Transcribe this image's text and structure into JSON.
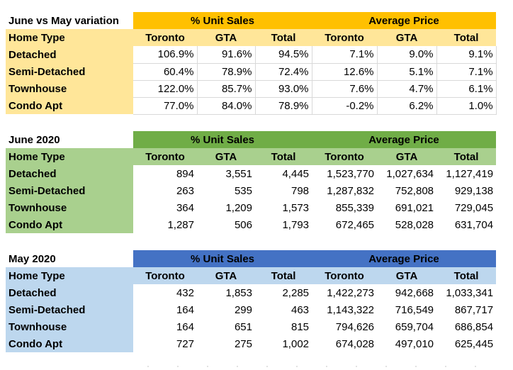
{
  "colors": {
    "variation_header": "#ffc000",
    "variation_label": "#ffe699",
    "june_header": "#70ad47",
    "june_label": "#a9d08e",
    "may_header": "#4472c4",
    "may_label": "#bdd7ee"
  },
  "tables": [
    {
      "id": "variation",
      "title": "June vs May variation",
      "group_unit_sales": "% Unit Sales",
      "group_avg_price": "Average Price",
      "column_header_label": "Home Type",
      "columns": [
        "Toronto",
        "GTA",
        "Total",
        "Toronto",
        "GTA",
        "Total"
      ],
      "rows": [
        {
          "label": "Detached",
          "values": [
            "106.9%",
            "91.6%",
            "94.5%",
            "7.1%",
            "9.0%",
            "9.1%"
          ]
        },
        {
          "label": "Semi-Detached",
          "values": [
            "60.4%",
            "78.9%",
            "72.4%",
            "12.6%",
            "5.1%",
            "7.1%"
          ]
        },
        {
          "label": "Townhouse",
          "values": [
            "122.0%",
            "85.7%",
            "93.0%",
            "7.6%",
            "4.7%",
            "6.1%"
          ]
        },
        {
          "label": "Condo Apt",
          "values": [
            "77.0%",
            "84.0%",
            "78.9%",
            "-0.2%",
            "6.2%",
            "1.0%"
          ]
        }
      ]
    },
    {
      "id": "june",
      "title": "June 2020",
      "group_unit_sales": "% Unit Sales",
      "group_avg_price": "Average Price",
      "column_header_label": "Home Type",
      "columns": [
        "Toronto",
        "GTA",
        "Total",
        "Toronto",
        "GTA",
        "Total"
      ],
      "rows": [
        {
          "label": "Detached",
          "values": [
            "894",
            "3,551",
            "4,445",
            "1,523,770",
            "1,027,634",
            "1,127,419"
          ]
        },
        {
          "label": "Semi-Detached",
          "values": [
            "263",
            "535",
            "798",
            "1,287,832",
            "752,808",
            "929,138"
          ]
        },
        {
          "label": "Townhouse",
          "values": [
            "364",
            "1,209",
            "1,573",
            "855,339",
            "691,021",
            "729,045"
          ]
        },
        {
          "label": "Condo Apt",
          "values": [
            "1,287",
            "506",
            "1,793",
            "672,465",
            "528,028",
            "631,704"
          ]
        }
      ]
    },
    {
      "id": "may",
      "title": "May 2020",
      "group_unit_sales": "% Unit Sales",
      "group_avg_price": "Average Price",
      "column_header_label": "Home Type",
      "columns": [
        "Toronto",
        "GTA",
        "Total",
        "Toronto",
        "GTA",
        "Total"
      ],
      "rows": [
        {
          "label": "Detached",
          "values": [
            "432",
            "1,853",
            "2,285",
            "1,422,273",
            "942,668",
            "1,033,341"
          ]
        },
        {
          "label": "Semi-Detached",
          "values": [
            "164",
            "299",
            "463",
            "1,143,322",
            "716,549",
            "867,717"
          ]
        },
        {
          "label": "Townhouse",
          "values": [
            "164",
            "651",
            "815",
            "794,626",
            "659,704",
            "686,854"
          ]
        },
        {
          "label": "Condo Apt",
          "values": [
            "727",
            "275",
            "1,002",
            "674,028",
            "497,010",
            "625,445"
          ]
        }
      ]
    }
  ]
}
